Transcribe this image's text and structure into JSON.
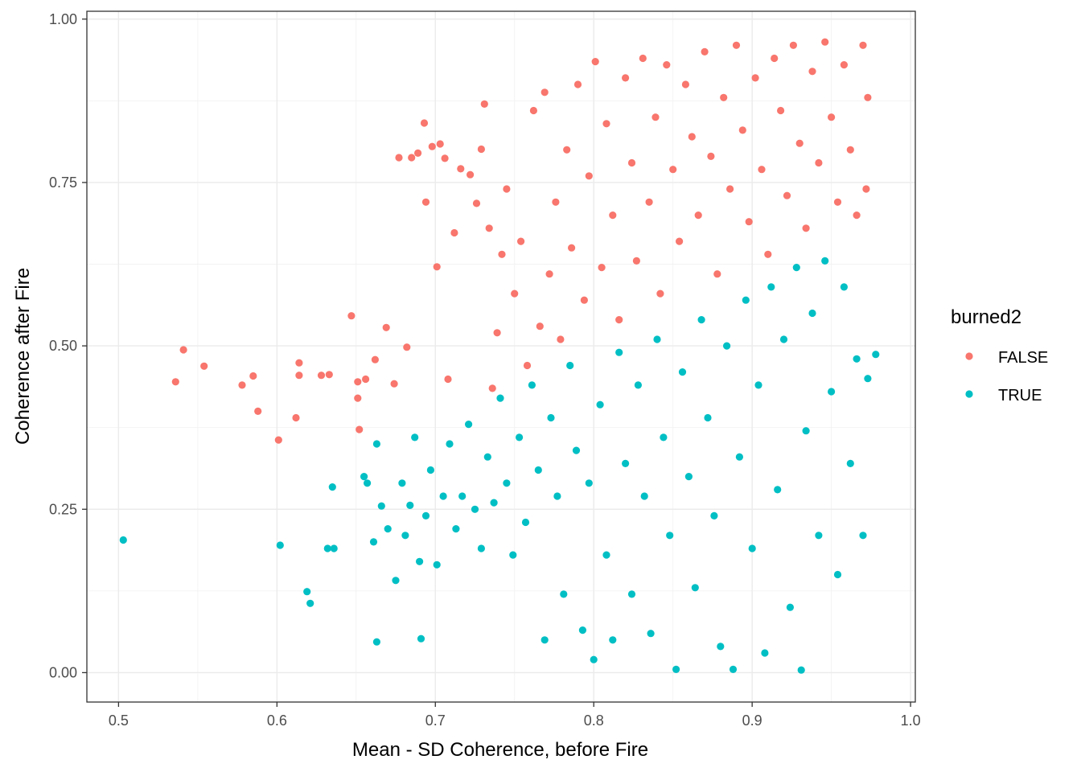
{
  "chart_data": {
    "type": "scatter",
    "title": "",
    "xlabel": "Mean - SD Coherence, before Fire",
    "ylabel": "Coherence after Fire",
    "xlim": [
      0.48,
      1.003
    ],
    "ylim": [
      -0.045,
      1.012
    ],
    "x_ticks": [
      0.5,
      0.6,
      0.7,
      0.8,
      0.9,
      1.0
    ],
    "x_tick_labels": [
      "0.5",
      "0.6",
      "0.7",
      "0.8",
      "0.9",
      "1.0"
    ],
    "y_ticks": [
      0.0,
      0.25,
      0.5,
      0.75,
      1.0
    ],
    "y_tick_labels": [
      "0.00",
      "0.25",
      "0.50",
      "0.75",
      "1.00"
    ],
    "grid": true,
    "legend": {
      "title": "burned2",
      "position": "right",
      "entries": [
        {
          "label": "FALSE",
          "color": "#F8766D"
        },
        {
          "label": "TRUE",
          "color": "#00BFC4"
        }
      ]
    },
    "series": [
      {
        "name": "FALSE",
        "color": "#F8766D",
        "points": [
          [
            0.536,
            0.445
          ],
          [
            0.541,
            0.494
          ],
          [
            0.554,
            0.469
          ],
          [
            0.578,
            0.44
          ],
          [
            0.585,
            0.454
          ],
          [
            0.588,
            0.4
          ],
          [
            0.601,
            0.356
          ],
          [
            0.612,
            0.39
          ],
          [
            0.614,
            0.474
          ],
          [
            0.614,
            0.455
          ],
          [
            0.628,
            0.455
          ],
          [
            0.633,
            0.456
          ],
          [
            0.647,
            0.546
          ],
          [
            0.651,
            0.445
          ],
          [
            0.651,
            0.42
          ],
          [
            0.652,
            0.372
          ],
          [
            0.656,
            0.449
          ],
          [
            0.662,
            0.479
          ],
          [
            0.669,
            0.528
          ],
          [
            0.674,
            0.442
          ],
          [
            0.677,
            0.788
          ],
          [
            0.682,
            0.498
          ],
          [
            0.685,
            0.788
          ],
          [
            0.689,
            0.795
          ],
          [
            0.693,
            0.841
          ],
          [
            0.694,
            0.72
          ],
          [
            0.698,
            0.805
          ],
          [
            0.701,
            0.621
          ],
          [
            0.703,
            0.809
          ],
          [
            0.706,
            0.787
          ],
          [
            0.708,
            0.449
          ],
          [
            0.712,
            0.673
          ],
          [
            0.716,
            0.771
          ],
          [
            0.722,
            0.762
          ],
          [
            0.726,
            0.718
          ],
          [
            0.729,
            0.801
          ],
          [
            0.731,
            0.87
          ],
          [
            0.734,
            0.68
          ],
          [
            0.736,
            0.435
          ],
          [
            0.739,
            0.52
          ],
          [
            0.742,
            0.64
          ],
          [
            0.745,
            0.74
          ],
          [
            0.75,
            0.58
          ],
          [
            0.754,
            0.66
          ],
          [
            0.758,
            0.47
          ],
          [
            0.762,
            0.86
          ],
          [
            0.766,
            0.53
          ],
          [
            0.769,
            0.888
          ],
          [
            0.772,
            0.61
          ],
          [
            0.776,
            0.72
          ],
          [
            0.779,
            0.51
          ],
          [
            0.783,
            0.8
          ],
          [
            0.786,
            0.65
          ],
          [
            0.79,
            0.9
          ],
          [
            0.794,
            0.57
          ],
          [
            0.797,
            0.76
          ],
          [
            0.801,
            0.935
          ],
          [
            0.805,
            0.62
          ],
          [
            0.808,
            0.84
          ],
          [
            0.812,
            0.7
          ],
          [
            0.816,
            0.54
          ],
          [
            0.82,
            0.91
          ],
          [
            0.824,
            0.78
          ],
          [
            0.827,
            0.63
          ],
          [
            0.831,
            0.94
          ],
          [
            0.835,
            0.72
          ],
          [
            0.839,
            0.85
          ],
          [
            0.842,
            0.58
          ],
          [
            0.846,
            0.93
          ],
          [
            0.85,
            0.77
          ],
          [
            0.854,
            0.66
          ],
          [
            0.858,
            0.9
          ],
          [
            0.862,
            0.82
          ],
          [
            0.866,
            0.7
          ],
          [
            0.87,
            0.95
          ],
          [
            0.874,
            0.79
          ],
          [
            0.878,
            0.61
          ],
          [
            0.882,
            0.88
          ],
          [
            0.886,
            0.74
          ],
          [
            0.89,
            0.96
          ],
          [
            0.894,
            0.83
          ],
          [
            0.898,
            0.69
          ],
          [
            0.902,
            0.91
          ],
          [
            0.906,
            0.77
          ],
          [
            0.91,
            0.64
          ],
          [
            0.914,
            0.94
          ],
          [
            0.918,
            0.86
          ],
          [
            0.922,
            0.73
          ],
          [
            0.926,
            0.96
          ],
          [
            0.93,
            0.81
          ],
          [
            0.934,
            0.68
          ],
          [
            0.938,
            0.92
          ],
          [
            0.942,
            0.78
          ],
          [
            0.946,
            0.965
          ],
          [
            0.95,
            0.85
          ],
          [
            0.954,
            0.72
          ],
          [
            0.958,
            0.93
          ],
          [
            0.962,
            0.8
          ],
          [
            0.966,
            0.7
          ],
          [
            0.97,
            0.96
          ],
          [
            0.973,
            0.88
          ],
          [
            0.972,
            0.74
          ]
        ]
      },
      {
        "name": "TRUE",
        "color": "#00BFC4",
        "points": [
          [
            0.503,
            0.203
          ],
          [
            0.602,
            0.195
          ],
          [
            0.619,
            0.124
          ],
          [
            0.621,
            0.106
          ],
          [
            0.632,
            0.19
          ],
          [
            0.635,
            0.284
          ],
          [
            0.636,
            0.19
          ],
          [
            0.655,
            0.3
          ],
          [
            0.657,
            0.29
          ],
          [
            0.661,
            0.2
          ],
          [
            0.663,
            0.35
          ],
          [
            0.663,
            0.047
          ],
          [
            0.666,
            0.255
          ],
          [
            0.67,
            0.22
          ],
          [
            0.675,
            0.141
          ],
          [
            0.679,
            0.29
          ],
          [
            0.681,
            0.21
          ],
          [
            0.684,
            0.256
          ],
          [
            0.687,
            0.36
          ],
          [
            0.69,
            0.17
          ],
          [
            0.691,
            0.052
          ],
          [
            0.694,
            0.24
          ],
          [
            0.697,
            0.31
          ],
          [
            0.701,
            0.165
          ],
          [
            0.705,
            0.27
          ],
          [
            0.709,
            0.35
          ],
          [
            0.713,
            0.22
          ],
          [
            0.717,
            0.27
          ],
          [
            0.721,
            0.38
          ],
          [
            0.725,
            0.25
          ],
          [
            0.729,
            0.19
          ],
          [
            0.733,
            0.33
          ],
          [
            0.737,
            0.26
          ],
          [
            0.741,
            0.42
          ],
          [
            0.745,
            0.29
          ],
          [
            0.749,
            0.18
          ],
          [
            0.753,
            0.36
          ],
          [
            0.757,
            0.23
          ],
          [
            0.761,
            0.44
          ],
          [
            0.765,
            0.31
          ],
          [
            0.769,
            0.05
          ],
          [
            0.773,
            0.39
          ],
          [
            0.777,
            0.27
          ],
          [
            0.781,
            0.12
          ],
          [
            0.785,
            0.47
          ],
          [
            0.789,
            0.34
          ],
          [
            0.793,
            0.065
          ],
          [
            0.797,
            0.29
          ],
          [
            0.8,
            0.02
          ],
          [
            0.804,
            0.41
          ],
          [
            0.808,
            0.18
          ],
          [
            0.812,
            0.05
          ],
          [
            0.816,
            0.49
          ],
          [
            0.82,
            0.32
          ],
          [
            0.824,
            0.12
          ],
          [
            0.828,
            0.44
          ],
          [
            0.832,
            0.27
          ],
          [
            0.836,
            0.06
          ],
          [
            0.84,
            0.51
          ],
          [
            0.844,
            0.36
          ],
          [
            0.848,
            0.21
          ],
          [
            0.852,
            0.005
          ],
          [
            0.856,
            0.46
          ],
          [
            0.86,
            0.3
          ],
          [
            0.864,
            0.13
          ],
          [
            0.868,
            0.54
          ],
          [
            0.872,
            0.39
          ],
          [
            0.876,
            0.24
          ],
          [
            0.88,
            0.04
          ],
          [
            0.884,
            0.5
          ],
          [
            0.888,
            0.005
          ],
          [
            0.892,
            0.33
          ],
          [
            0.896,
            0.57
          ],
          [
            0.9,
            0.19
          ],
          [
            0.904,
            0.44
          ],
          [
            0.908,
            0.03
          ],
          [
            0.912,
            0.59
          ],
          [
            0.916,
            0.28
          ],
          [
            0.92,
            0.51
          ],
          [
            0.924,
            0.1
          ],
          [
            0.928,
            0.62
          ],
          [
            0.931,
            0.004
          ],
          [
            0.934,
            0.37
          ],
          [
            0.938,
            0.55
          ],
          [
            0.942,
            0.21
          ],
          [
            0.946,
            0.63
          ],
          [
            0.95,
            0.43
          ],
          [
            0.954,
            0.15
          ],
          [
            0.958,
            0.59
          ],
          [
            0.962,
            0.32
          ],
          [
            0.966,
            0.48
          ],
          [
            0.97,
            0.21
          ],
          [
            0.973,
            0.45
          ],
          [
            0.978,
            0.487
          ]
        ]
      }
    ]
  }
}
